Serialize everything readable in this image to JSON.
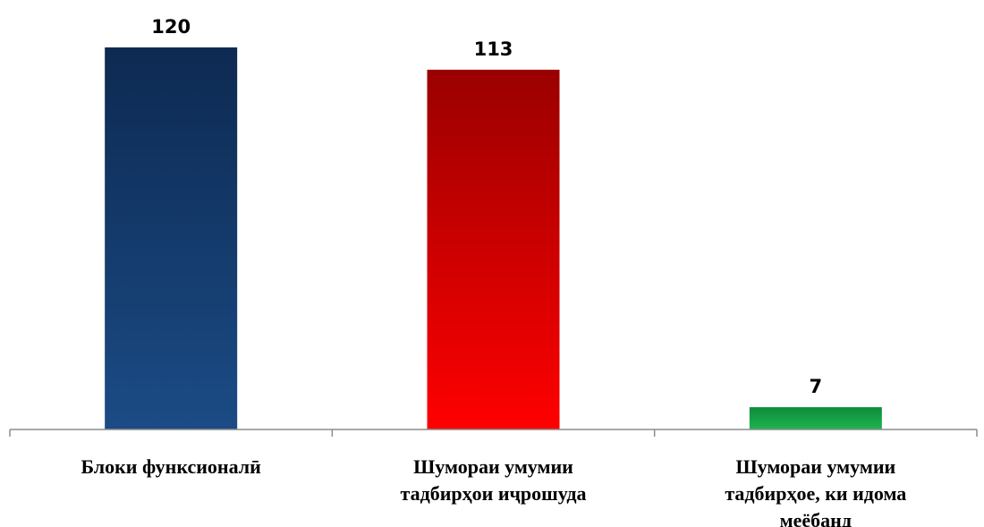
{
  "chart_data": {
    "type": "bar",
    "categories": [
      [
        "Блоки функсионалӣ"
      ],
      [
        "Шумораи умумии",
        "тадбирҳои иҷрошуда"
      ],
      [
        "Шумораи умумии",
        "тадбирҳое, ки идома",
        "меёбанд"
      ]
    ],
    "values": [
      120,
      113,
      7
    ],
    "ylim": [
      0,
      120
    ],
    "grid": false,
    "legend": "none",
    "colors": [
      {
        "top": "#0d2a52",
        "bottom": "#1b4b85"
      },
      {
        "top": "#9a0000",
        "bottom": "#ff0000"
      },
      {
        "top": "#0d8c3b",
        "bottom": "#1fb351"
      }
    ],
    "axis_color": "#8c8c8c"
  }
}
